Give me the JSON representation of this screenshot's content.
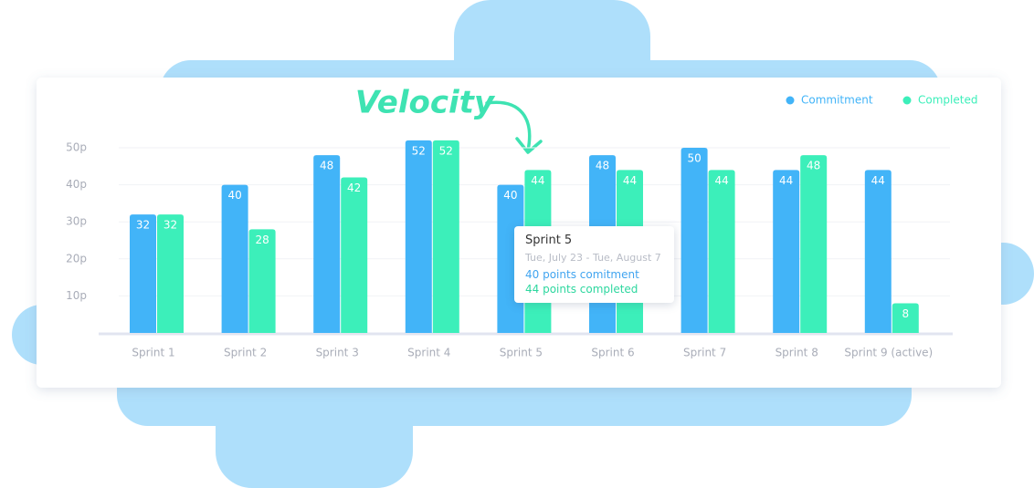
{
  "chart_data": {
    "type": "bar",
    "title": "Velocity",
    "categories": [
      "Sprint 1",
      "Sprint 2",
      "Sprint 3",
      "Sprint 4",
      "Sprint 5",
      "Sprint 6",
      "Sprint 7",
      "Sprint 8",
      "Sprint 9 (active)"
    ],
    "series": [
      {
        "name": "Commitment",
        "color": "#42b4f8",
        "values": [
          32,
          40,
          48,
          52,
          40,
          48,
          50,
          44,
          44
        ]
      },
      {
        "name": "Completed",
        "color": "#3cefba",
        "values": [
          32,
          28,
          42,
          52,
          44,
          44,
          44,
          48,
          8
        ]
      }
    ],
    "ylim": [
      0,
      50
    ],
    "yticks": [
      {
        "value": 10,
        "label": "10p"
      },
      {
        "value": 20,
        "label": "20p"
      },
      {
        "value": 30,
        "label": "30p"
      },
      {
        "value": 40,
        "label": "40p"
      },
      {
        "value": 50,
        "label": "50p"
      }
    ],
    "grid": true,
    "legend": "top-right",
    "tooltip": {
      "title": "Sprint 5",
      "dates": "Tue, July 23  - Tue,  August 7",
      "commitment": "40 points comitment",
      "completed": "44 points completed"
    }
  }
}
